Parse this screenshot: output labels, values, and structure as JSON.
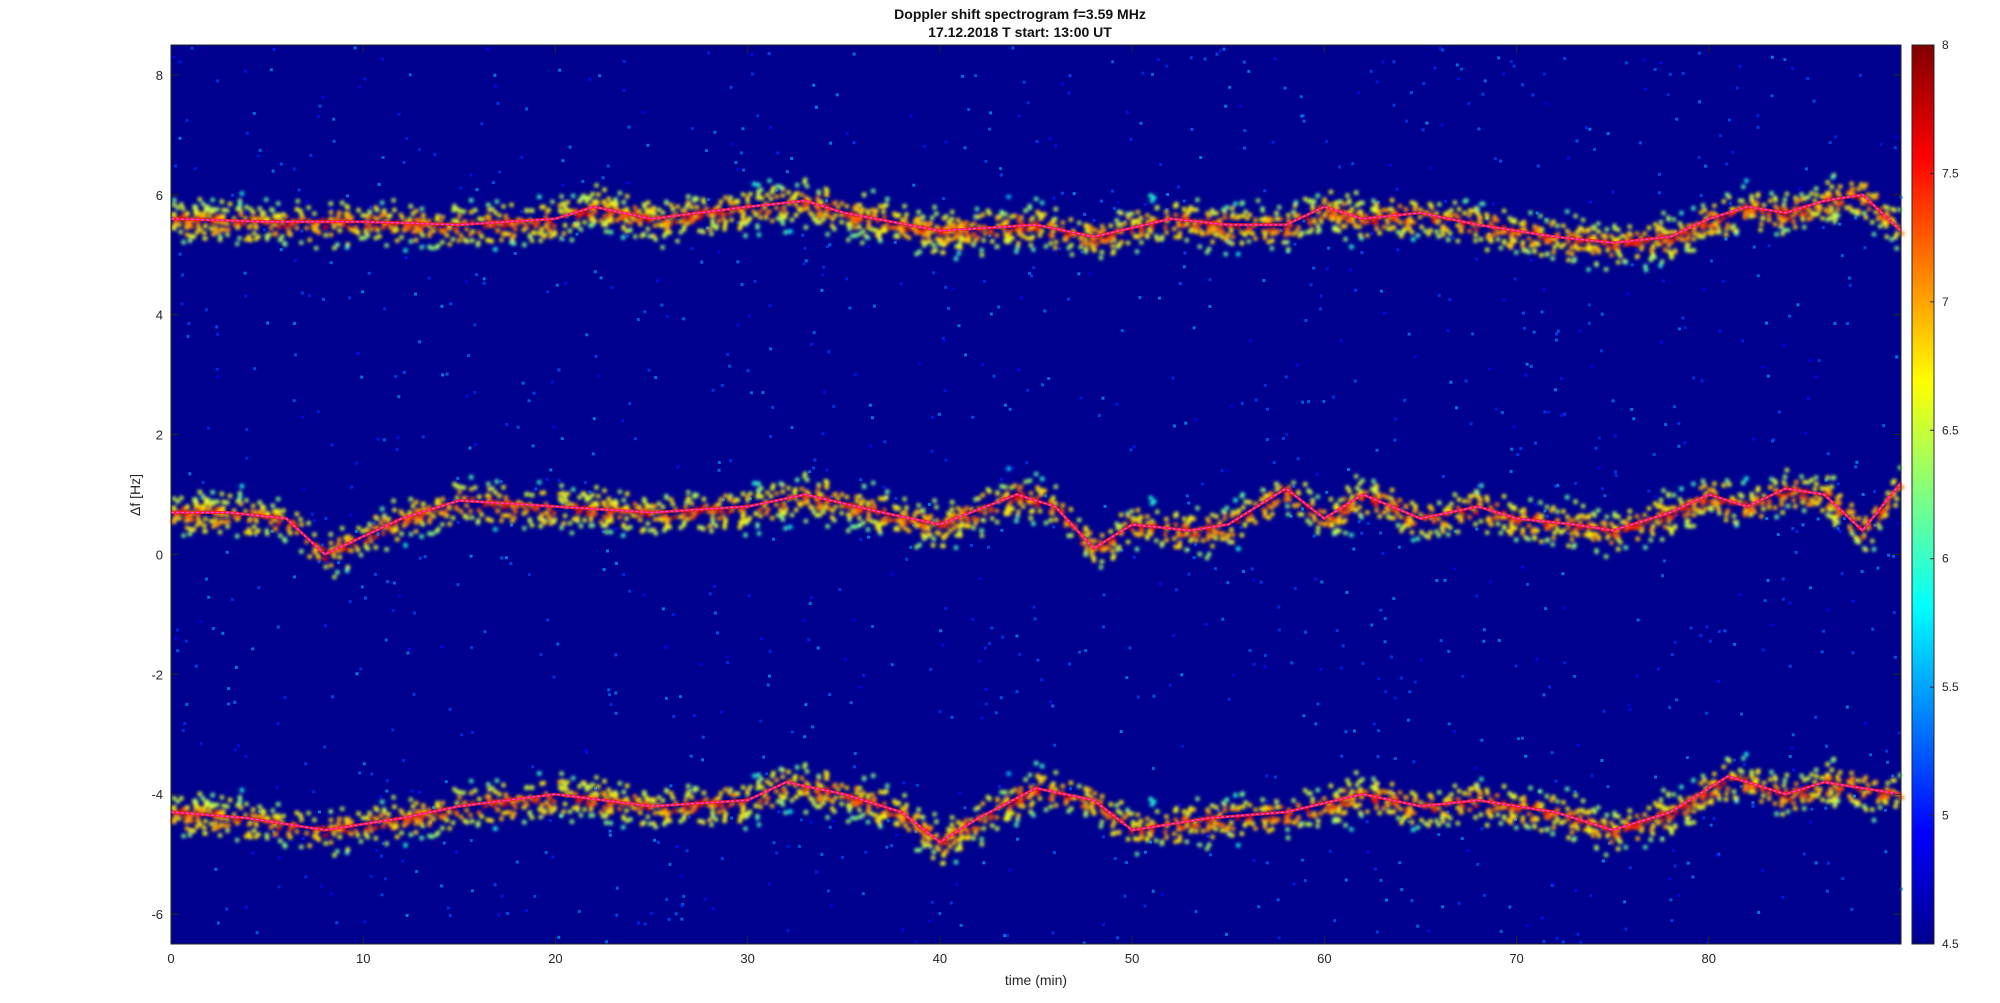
{
  "chart_data": {
    "type": "heatmap",
    "title": "Doppler shift spectrogram f=3.59 MHz",
    "subtitle": "17.12.2018   T start: 13:00 UT",
    "xlabel": "time (min)",
    "ylabel": "Δf [Hz]",
    "xlim": [
      0,
      90
    ],
    "ylim": [
      -6.5,
      8.5
    ],
    "x_ticks": [
      0,
      10,
      20,
      30,
      40,
      50,
      60,
      70,
      80
    ],
    "y_ticks": [
      -6,
      -4,
      -2,
      0,
      2,
      4,
      6,
      8
    ],
    "colorbar": {
      "range": [
        4.5,
        8
      ],
      "ticks": [
        4.5,
        5,
        5.5,
        6,
        6.5,
        7,
        7.5,
        8
      ],
      "colormap": "jet"
    },
    "series": [
      {
        "band": "upper",
        "x": [
          0,
          5,
          10,
          15,
          20,
          22,
          25,
          30,
          33,
          35,
          40,
          45,
          48,
          52,
          55,
          58,
          60,
          62,
          65,
          68,
          70,
          72,
          75,
          78,
          80,
          82,
          84,
          86,
          88,
          90
        ],
        "y": [
          5.6,
          5.55,
          5.55,
          5.5,
          5.6,
          5.8,
          5.6,
          5.8,
          5.9,
          5.7,
          5.4,
          5.5,
          5.3,
          5.6,
          5.5,
          5.5,
          5.8,
          5.6,
          5.7,
          5.5,
          5.4,
          5.3,
          5.2,
          5.3,
          5.6,
          5.8,
          5.7,
          5.9,
          6.0,
          5.4
        ]
      },
      {
        "band": "middle",
        "x": [
          0,
          3,
          6,
          8,
          10,
          12,
          15,
          20,
          25,
          30,
          33,
          37,
          40,
          44,
          46,
          48,
          50,
          53,
          55,
          58,
          60,
          62,
          65,
          68,
          70,
          73,
          75,
          78,
          80,
          82,
          84,
          86,
          88,
          90
        ],
        "y": [
          0.7,
          0.7,
          0.6,
          0.0,
          0.3,
          0.6,
          0.9,
          0.8,
          0.7,
          0.8,
          1.0,
          0.7,
          0.5,
          1.0,
          0.8,
          0.1,
          0.5,
          0.4,
          0.5,
          1.1,
          0.6,
          1.0,
          0.6,
          0.8,
          0.6,
          0.5,
          0.4,
          0.7,
          1.0,
          0.8,
          1.1,
          1.0,
          0.4,
          1.2
        ]
      },
      {
        "band": "lower",
        "x": [
          0,
          4,
          8,
          12,
          15,
          20,
          25,
          30,
          32,
          35,
          38,
          40,
          42,
          45,
          48,
          50,
          54,
          58,
          62,
          65,
          68,
          72,
          75,
          78,
          81,
          84,
          86,
          88,
          90
        ],
        "y": [
          -4.3,
          -4.4,
          -4.6,
          -4.4,
          -4.2,
          -4.0,
          -4.2,
          -4.1,
          -3.8,
          -4.0,
          -4.3,
          -4.8,
          -4.4,
          -3.9,
          -4.1,
          -4.6,
          -4.4,
          -4.3,
          -4.0,
          -4.2,
          -4.1,
          -4.3,
          -4.6,
          -4.3,
          -3.7,
          -4.0,
          -3.8,
          -3.9,
          -4.0
        ]
      }
    ]
  }
}
